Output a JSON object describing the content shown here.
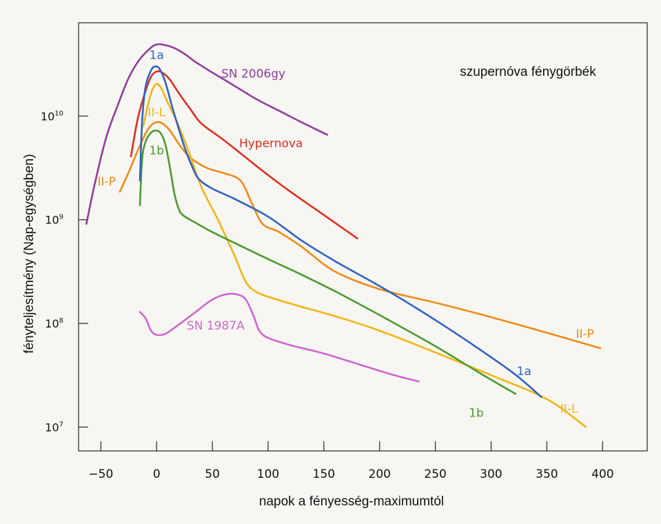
{
  "chart_data": {
    "type": "line",
    "title": "szupernóva fénygörbék",
    "xlabel": "napok a fényesség-maximumtól",
    "ylabel": "fényteljesítmény (Nap-egységben)",
    "xlim": [
      -70,
      440
    ],
    "ylim_log10": [
      6.77,
      10.9
    ],
    "x_ticks": [
      -50,
      0,
      50,
      100,
      150,
      200,
      250,
      300,
      350,
      400
    ],
    "x_tick_labels": [
      "−50",
      "0",
      "50",
      "100",
      "150",
      "200",
      "250",
      "300",
      "350",
      "400"
    ],
    "y_ticks": [
      {
        "base": "10",
        "exp": "7",
        "value": 7
      },
      {
        "base": "10",
        "exp": "8",
        "value": 8
      },
      {
        "base": "10",
        "exp": "9",
        "value": 9
      },
      {
        "base": "10",
        "exp": "10",
        "value": 10
      }
    ],
    "series": [
      {
        "name": "SN 2006gy",
        "color": "#8e3d9a",
        "points": [
          [
            -63,
            8.96
          ],
          [
            -55,
            9.37
          ],
          [
            -45,
            9.8
          ],
          [
            -35,
            10.1
          ],
          [
            -25,
            10.37
          ],
          [
            -15,
            10.55
          ],
          [
            -5,
            10.66
          ],
          [
            0,
            10.69
          ],
          [
            5,
            10.69
          ],
          [
            15,
            10.66
          ],
          [
            25,
            10.6
          ],
          [
            35,
            10.52
          ],
          [
            50,
            10.42
          ],
          [
            70,
            10.29
          ],
          [
            90,
            10.16
          ],
          [
            110,
            10.05
          ],
          [
            130,
            9.94
          ],
          [
            153,
            9.82
          ]
        ]
      },
      {
        "name": "1a",
        "color": "#2f62c2",
        "points": [
          [
            -15,
            9.38
          ],
          [
            -13,
            9.95
          ],
          [
            -10,
            10.28
          ],
          [
            -5,
            10.44
          ],
          [
            -1,
            10.48
          ],
          [
            3,
            10.45
          ],
          [
            8,
            10.32
          ],
          [
            15,
            10.05
          ],
          [
            25,
            9.7
          ],
          [
            32,
            9.51
          ],
          [
            38,
            9.39
          ],
          [
            50,
            9.3
          ],
          [
            70,
            9.2
          ],
          [
            100,
            9.03
          ],
          [
            130,
            8.8
          ],
          [
            160,
            8.6
          ],
          [
            200,
            8.36
          ],
          [
            240,
            8.1
          ],
          [
            280,
            7.82
          ],
          [
            320,
            7.52
          ],
          [
            345,
            7.29
          ]
        ]
      },
      {
        "name": "Hypernova",
        "color": "#e02d1c",
        "points": [
          [
            -23,
            9.61
          ],
          [
            -17,
            9.97
          ],
          [
            -10,
            10.24
          ],
          [
            -5,
            10.38
          ],
          [
            0,
            10.43
          ],
          [
            5,
            10.42
          ],
          [
            12,
            10.35
          ],
          [
            20,
            10.22
          ],
          [
            30,
            10.07
          ],
          [
            40,
            9.93
          ],
          [
            60,
            9.77
          ],
          [
            80,
            9.6
          ],
          [
            100,
            9.43
          ],
          [
            120,
            9.27
          ],
          [
            140,
            9.12
          ],
          [
            160,
            8.97
          ],
          [
            180,
            8.82
          ]
        ]
      },
      {
        "name": "II-L",
        "color": "#f3b412",
        "points": [
          [
            -12,
            9.9
          ],
          [
            -8,
            10.1
          ],
          [
            -4,
            10.25
          ],
          [
            0,
            10.31
          ],
          [
            4,
            10.27
          ],
          [
            10,
            10.13
          ],
          [
            18,
            9.95
          ],
          [
            28,
            9.68
          ],
          [
            40,
            9.32
          ],
          [
            55,
            9.0
          ],
          [
            70,
            8.65
          ],
          [
            80,
            8.4
          ],
          [
            90,
            8.3
          ],
          [
            105,
            8.24
          ],
          [
            130,
            8.16
          ],
          [
            160,
            8.07
          ],
          [
            200,
            7.93
          ],
          [
            250,
            7.72
          ],
          [
            300,
            7.5
          ],
          [
            350,
            7.27
          ],
          [
            385,
            7.0
          ]
        ]
      },
      {
        "name": "II-P",
        "color": "#f08a15",
        "points": [
          [
            -33,
            9.27
          ],
          [
            -25,
            9.46
          ],
          [
            -18,
            9.64
          ],
          [
            -10,
            9.83
          ],
          [
            -5,
            9.91
          ],
          [
            0,
            9.94
          ],
          [
            5,
            9.93
          ],
          [
            12,
            9.86
          ],
          [
            20,
            9.73
          ],
          [
            30,
            9.6
          ],
          [
            45,
            9.5
          ],
          [
            60,
            9.45
          ],
          [
            75,
            9.38
          ],
          [
            85,
            9.17
          ],
          [
            95,
            8.96
          ],
          [
            110,
            8.88
          ],
          [
            130,
            8.74
          ],
          [
            160,
            8.5
          ],
          [
            200,
            8.33
          ],
          [
            250,
            8.2
          ],
          [
            300,
            8.06
          ],
          [
            350,
            7.91
          ],
          [
            398,
            7.76
          ]
        ]
      },
      {
        "name": "1b",
        "color": "#4a9a2c",
        "points": [
          [
            -15,
            9.14
          ],
          [
            -13,
            9.58
          ],
          [
            -10,
            9.75
          ],
          [
            -5,
            9.84
          ],
          [
            0,
            9.86
          ],
          [
            4,
            9.83
          ],
          [
            8,
            9.72
          ],
          [
            12,
            9.5
          ],
          [
            16,
            9.25
          ],
          [
            20,
            9.1
          ],
          [
            24,
            9.04
          ],
          [
            35,
            8.97
          ],
          [
            50,
            8.88
          ],
          [
            75,
            8.75
          ],
          [
            100,
            8.62
          ],
          [
            130,
            8.47
          ],
          [
            160,
            8.31
          ],
          [
            200,
            8.08
          ],
          [
            250,
            7.78
          ],
          [
            290,
            7.52
          ],
          [
            322,
            7.32
          ]
        ]
      },
      {
        "name": "SN 1987A",
        "color": "#cc66cc",
        "points": [
          [
            -15,
            8.11
          ],
          [
            -10,
            8.05
          ],
          [
            -5,
            7.93
          ],
          [
            0,
            7.89
          ],
          [
            8,
            7.9
          ],
          [
            20,
            7.99
          ],
          [
            35,
            8.11
          ],
          [
            50,
            8.23
          ],
          [
            62,
            8.28
          ],
          [
            72,
            8.28
          ],
          [
            80,
            8.23
          ],
          [
            87,
            8.07
          ],
          [
            92,
            7.93
          ],
          [
            100,
            7.86
          ],
          [
            120,
            7.79
          ],
          [
            150,
            7.71
          ],
          [
            180,
            7.61
          ],
          [
            210,
            7.51
          ],
          [
            235,
            7.44
          ]
        ]
      }
    ],
    "annotations": [
      {
        "text": "SN 2006gy",
        "color": "#8e3d9a",
        "x": 58,
        "y": 10.37,
        "anchor": "start"
      },
      {
        "text": "1a",
        "color": "#2f62c2",
        "x": 0,
        "y": 10.55,
        "anchor": "middle"
      },
      {
        "text": "II-L",
        "color": "#f3b412",
        "x": 0,
        "y": 10.0,
        "anchor": "middle"
      },
      {
        "text": "Hypernova",
        "color": "#e02d1c",
        "x": 74,
        "y": 9.7,
        "anchor": "start"
      },
      {
        "text": "1b",
        "color": "#4a9a2c",
        "x": 0,
        "y": 9.63,
        "anchor": "middle"
      },
      {
        "text": "II-P",
        "color": "#f08a15",
        "x": -53,
        "y": 9.33,
        "anchor": "start"
      },
      {
        "text": "SN 1987A",
        "color": "#cc66cc",
        "x": 27,
        "y": 7.94,
        "anchor": "start"
      },
      {
        "text": "II-P",
        "color": "#f08a15",
        "x": 376,
        "y": 7.86,
        "anchor": "start"
      },
      {
        "text": "1a",
        "color": "#2f62c2",
        "x": 323,
        "y": 7.5,
        "anchor": "start"
      },
      {
        "text": "II-L",
        "color": "#f3b412",
        "x": 362,
        "y": 7.14,
        "anchor": "start"
      },
      {
        "text": "1b",
        "color": "#4a9a2c",
        "x": 280,
        "y": 7.1,
        "anchor": "start"
      }
    ]
  }
}
